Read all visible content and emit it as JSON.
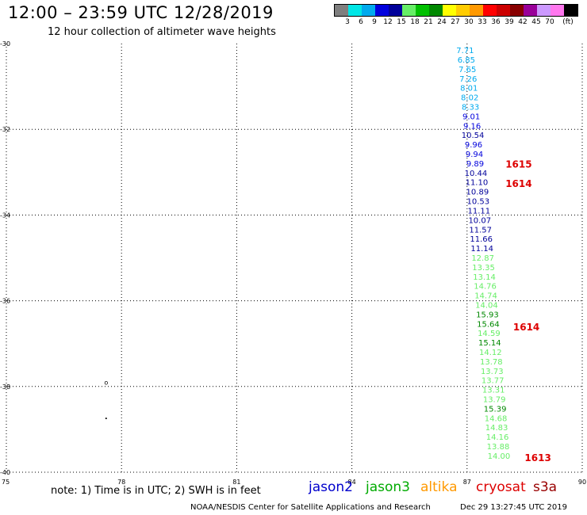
{
  "title": "12:00 – 23:59 UTC 12/28/2019",
  "subtitle": "12 hour collection of altimeter wave heights",
  "legend": {
    "colors": [
      "#7f7f7f",
      "#00e6e6",
      "#00aaee",
      "#0000dd",
      "#00009a",
      "#66ee66",
      "#00c000",
      "#008800",
      "#ffff00",
      "#ffcc00",
      "#ff9900",
      "#ff0000",
      "#cc0000",
      "#880000",
      "#990099",
      "#cc99ff",
      "#ff77ee",
      "#000000"
    ],
    "labels": [
      "3",
      "6",
      "9",
      "12",
      "15",
      "18",
      "21",
      "24",
      "27",
      "30",
      "33",
      "36",
      "39",
      "42",
      "45",
      "70",
      "(ft)"
    ]
  },
  "map": {
    "lon_ticks": [
      "75",
      "78",
      "81",
      "84",
      "87",
      "90"
    ],
    "lat_ticks": [
      "-30",
      "-32",
      "-34",
      "-36",
      "-38",
      "-40"
    ],
    "island_mark": "o",
    "island_dot": "·"
  },
  "observations": [
    {
      "lat": -30.15,
      "lon": 86.95,
      "value": "7.71",
      "color": "#00aaee"
    },
    {
      "lat": -30.37,
      "lon": 86.98,
      "value": "6.85",
      "color": "#00aaee"
    },
    {
      "lat": -30.59,
      "lon": 87.01,
      "value": "7.65",
      "color": "#00aaee"
    },
    {
      "lat": -30.81,
      "lon": 87.03,
      "value": "7.26",
      "color": "#00aaee"
    },
    {
      "lat": -31.03,
      "lon": 87.05,
      "value": "8.01",
      "color": "#00aaee"
    },
    {
      "lat": -31.25,
      "lon": 87.07,
      "value": "8.02",
      "color": "#00aaee"
    },
    {
      "lat": -31.47,
      "lon": 87.09,
      "value": "8.33",
      "color": "#00aaee"
    },
    {
      "lat": -31.69,
      "lon": 87.11,
      "value": "9.01",
      "color": "#0000dd"
    },
    {
      "lat": -31.91,
      "lon": 87.13,
      "value": "9.16",
      "color": "#0000dd"
    },
    {
      "lat": -32.13,
      "lon": 87.15,
      "value": "10.54",
      "color": "#00009a"
    },
    {
      "lat": -32.35,
      "lon": 87.17,
      "value": "9.96",
      "color": "#0000dd"
    },
    {
      "lat": -32.57,
      "lon": 87.19,
      "value": "9.94",
      "color": "#0000dd"
    },
    {
      "lat": -32.79,
      "lon": 87.21,
      "value": "9.89",
      "color": "#0000dd"
    },
    {
      "lat": -33.01,
      "lon": 87.23,
      "value": "10.44",
      "color": "#00009a"
    },
    {
      "lat": -33.23,
      "lon": 87.25,
      "value": "11.10",
      "color": "#00009a"
    },
    {
      "lat": -33.45,
      "lon": 87.27,
      "value": "10.89",
      "color": "#00009a"
    },
    {
      "lat": -33.67,
      "lon": 87.29,
      "value": "10.53",
      "color": "#00009a"
    },
    {
      "lat": -33.89,
      "lon": 87.31,
      "value": "11.11",
      "color": "#00009a"
    },
    {
      "lat": -34.11,
      "lon": 87.33,
      "value": "10.07",
      "color": "#00009a"
    },
    {
      "lat": -34.33,
      "lon": 87.35,
      "value": "11.57",
      "color": "#00009a"
    },
    {
      "lat": -34.55,
      "lon": 87.37,
      "value": "11.66",
      "color": "#00009a"
    },
    {
      "lat": -34.77,
      "lon": 87.39,
      "value": "11.14",
      "color": "#00009a"
    },
    {
      "lat": -34.99,
      "lon": 87.41,
      "value": "12.87",
      "color": "#66ee66"
    },
    {
      "lat": -35.21,
      "lon": 87.43,
      "value": "13.35",
      "color": "#66ee66"
    },
    {
      "lat": -35.43,
      "lon": 87.45,
      "value": "13.14",
      "color": "#66ee66"
    },
    {
      "lat": -35.65,
      "lon": 87.47,
      "value": "14.76",
      "color": "#66ee66"
    },
    {
      "lat": -35.87,
      "lon": 87.49,
      "value": "14.74",
      "color": "#66ee66"
    },
    {
      "lat": -36.09,
      "lon": 87.51,
      "value": "14.04",
      "color": "#66ee66"
    },
    {
      "lat": -36.31,
      "lon": 87.53,
      "value": "15.93",
      "color": "#008800"
    },
    {
      "lat": -36.53,
      "lon": 87.55,
      "value": "15.64",
      "color": "#008800"
    },
    {
      "lat": -36.75,
      "lon": 87.57,
      "value": "14.59",
      "color": "#66ee66"
    },
    {
      "lat": -36.97,
      "lon": 87.59,
      "value": "15.14",
      "color": "#008800"
    },
    {
      "lat": -37.19,
      "lon": 87.61,
      "value": "14.12",
      "color": "#66ee66"
    },
    {
      "lat": -37.41,
      "lon": 87.63,
      "value": "13.78",
      "color": "#66ee66"
    },
    {
      "lat": -37.63,
      "lon": 87.65,
      "value": "13.73",
      "color": "#66ee66"
    },
    {
      "lat": -37.85,
      "lon": 87.67,
      "value": "13.77",
      "color": "#66ee66"
    },
    {
      "lat": -38.07,
      "lon": 87.69,
      "value": "13.31",
      "color": "#66ee66"
    },
    {
      "lat": -38.29,
      "lon": 87.71,
      "value": "13.79",
      "color": "#66ee66"
    },
    {
      "lat": -38.51,
      "lon": 87.73,
      "value": "15.39",
      "color": "#008800"
    },
    {
      "lat": -38.73,
      "lon": 87.75,
      "value": "14.68",
      "color": "#66ee66"
    },
    {
      "lat": -38.95,
      "lon": 87.77,
      "value": "14.83",
      "color": "#66ee66"
    },
    {
      "lat": -39.17,
      "lon": 87.79,
      "value": "14.16",
      "color": "#66ee66"
    },
    {
      "lat": -39.39,
      "lon": 87.81,
      "value": "13.88",
      "color": "#66ee66"
    },
    {
      "lat": -39.61,
      "lon": 87.83,
      "value": "14.00",
      "color": "#66ee66"
    }
  ],
  "time_labels": [
    {
      "lat": -32.8,
      "lon": 88.0,
      "text": "1615"
    },
    {
      "lat": -33.25,
      "lon": 88.0,
      "text": "1614"
    },
    {
      "lat": -36.6,
      "lon": 88.2,
      "text": "1614"
    },
    {
      "lat": -39.65,
      "lon": 88.5,
      "text": "1613"
    }
  ],
  "note": "note: 1) Time is in UTC; 2) SWH is in feet",
  "satellites": [
    {
      "name": "jason2",
      "color": "#0000cc"
    },
    {
      "name": "jason3",
      "color": "#00aa00"
    },
    {
      "name": "altika",
      "color": "#ff9900"
    },
    {
      "name": "cryosat",
      "color": "#dd0000"
    },
    {
      "name": "s3a",
      "color": "#990000"
    }
  ],
  "footer": {
    "credit": "NOAA/NESDIS Center for Satellite Applications and Research",
    "timestamp": "Dec 29 13:27:45 UTC 2019"
  }
}
